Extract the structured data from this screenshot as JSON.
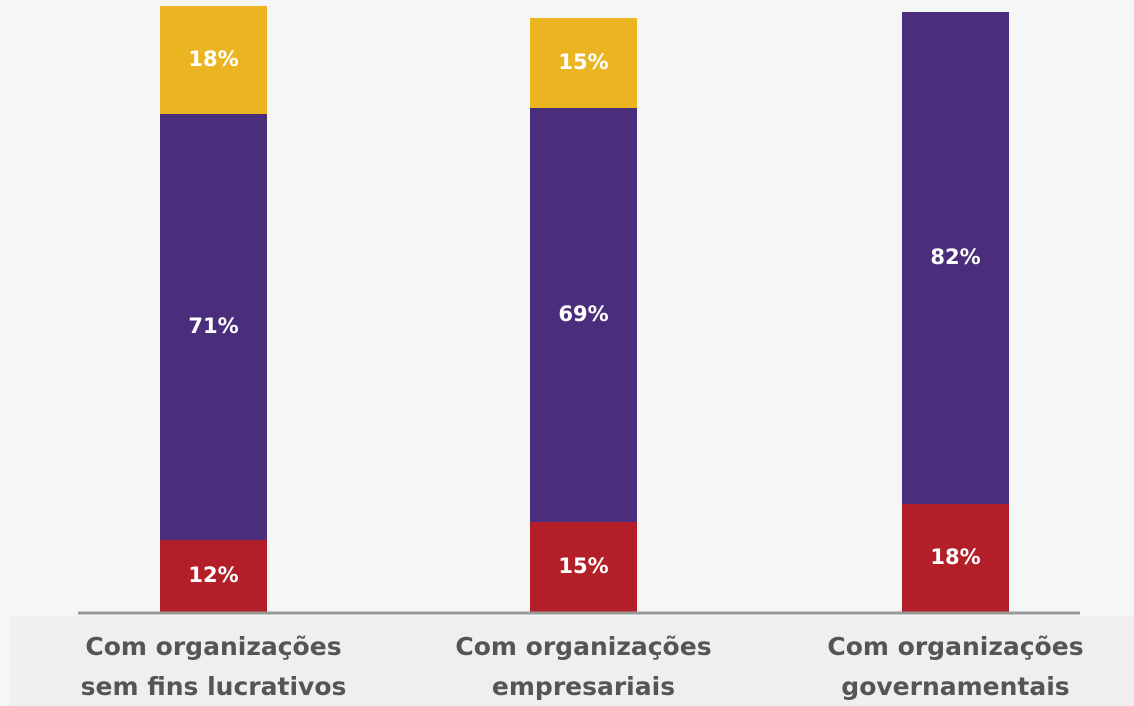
{
  "chart_data": {
    "type": "stacked_bar",
    "categories": [
      [
        "Com organizações",
        "sem fins lucrativos"
      ],
      [
        "Com organizações",
        "empresariais"
      ],
      [
        "Com  organizações",
        "governamentais"
      ]
    ],
    "series": [
      {
        "color": "#b31f29",
        "values": [
          12,
          15,
          18
        ],
        "value_labels": [
          "12%",
          "15%",
          "18%"
        ]
      },
      {
        "color": "#4a2d7b",
        "values": [
          71,
          69,
          82
        ],
        "value_labels": [
          "71%",
          "69%",
          "82%"
        ]
      },
      {
        "color": "#ebb521",
        "values": [
          18,
          15,
          null
        ],
        "value_labels": [
          "18%",
          "15%",
          null
        ]
      }
    ],
    "ylim": [
      0,
      100
    ]
  }
}
